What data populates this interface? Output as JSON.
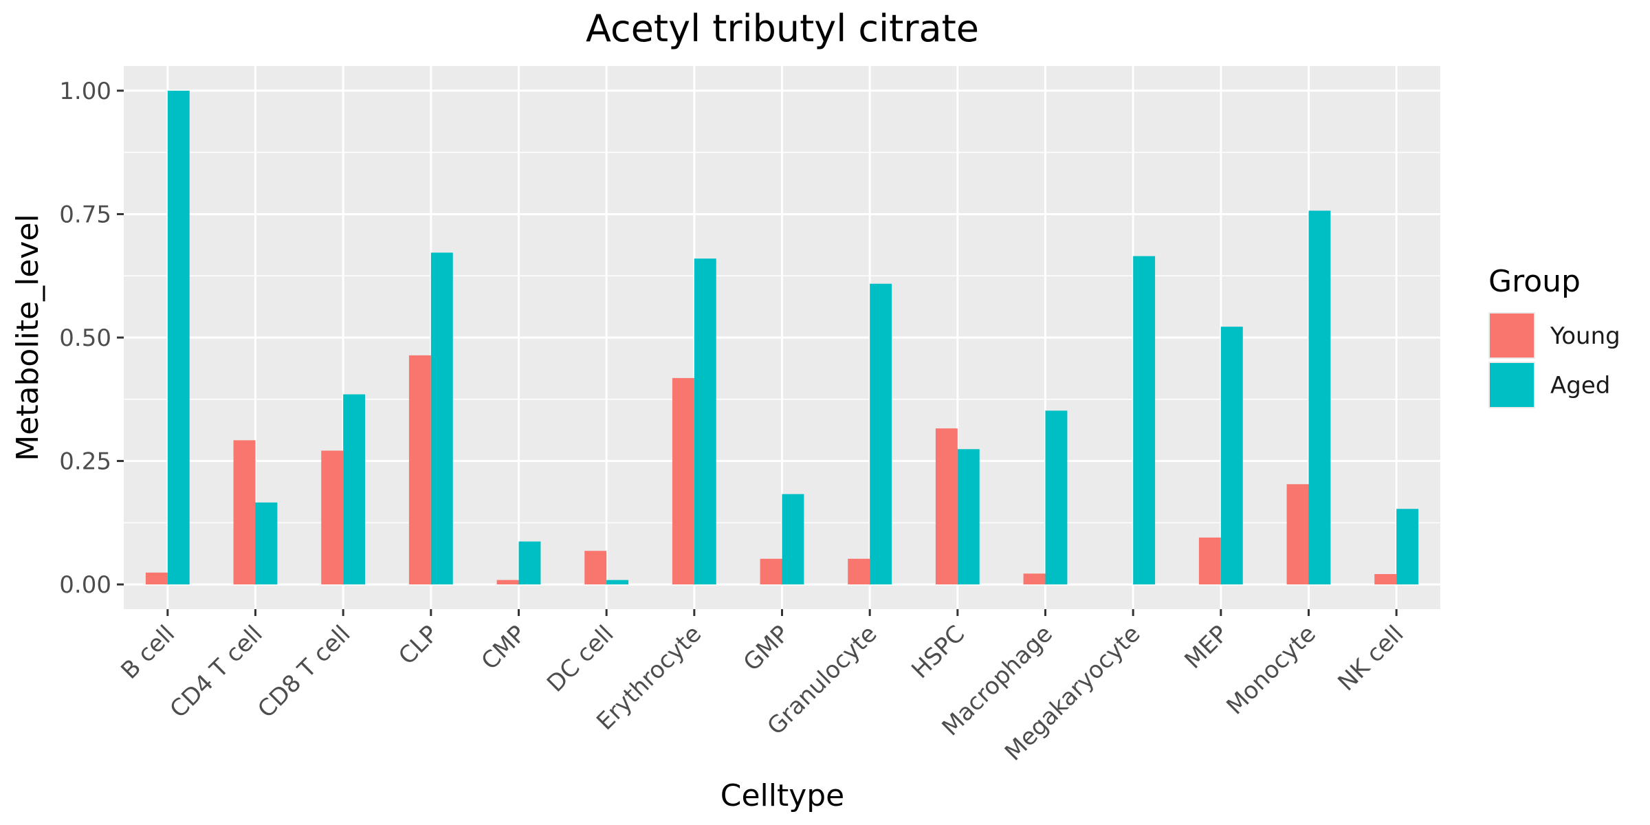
{
  "chart_data": {
    "type": "bar",
    "title": "Acetyl tributyl citrate",
    "xlabel": "Celltype",
    "ylabel": "Metabolite_level",
    "ylim": [
      -0.05,
      1.05
    ],
    "yticks": [
      0.0,
      0.25,
      0.5,
      0.75,
      1.0
    ],
    "ytick_labels": [
      "0.00",
      "0.25",
      "0.50",
      "0.75",
      "1.00"
    ],
    "grid": true,
    "legend": {
      "title": "Group",
      "position": "right"
    },
    "categories": [
      "B cell",
      "CD4 T cell",
      "CD8 T cell",
      "CLP",
      "CMP",
      "DC cell",
      "Erythrocyte",
      "GMP",
      "Granulocyte",
      "HSPC",
      "Macrophage",
      "Megakaryocyte",
      "MEP",
      "Monocyte",
      "NK cell"
    ],
    "series": [
      {
        "name": "Young",
        "color": "#F8766D",
        "values": [
          0.024,
          0.292,
          0.271,
          0.464,
          0.009,
          0.068,
          0.418,
          0.052,
          0.052,
          0.316,
          0.022,
          0.0,
          0.095,
          0.203,
          0.021
        ]
      },
      {
        "name": "Aged",
        "color": "#00BFC4",
        "values": [
          1.0,
          0.166,
          0.385,
          0.672,
          0.087,
          0.009,
          0.66,
          0.183,
          0.609,
          0.274,
          0.352,
          0.665,
          0.522,
          0.757,
          0.153
        ]
      }
    ]
  }
}
